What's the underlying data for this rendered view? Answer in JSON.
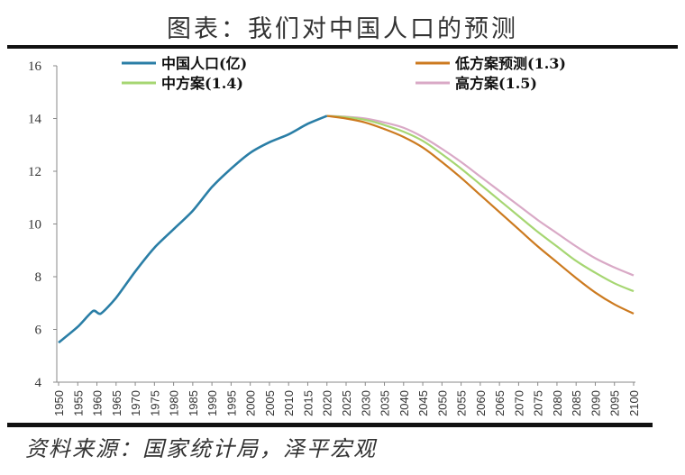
{
  "title": "图表：我们对中国人口的预测",
  "source": "资料来源：国家统计局，泽平宏观",
  "colors": {
    "historical": "#2a7ea6",
    "low": "#cc7a1f",
    "mid": "#a6d672",
    "high": "#d9a9c6",
    "axis": "#888888",
    "rule": "#111111"
  },
  "legend": {
    "historical": "中国人口(亿)",
    "low": "低方案预测(1.3)",
    "mid": "中方案(1.4)",
    "high": "高方案(1.5)"
  },
  "chart_data": {
    "type": "line",
    "title": "图表：我们对中国人口的预测",
    "xlabel": "",
    "ylabel": "",
    "ylim": [
      4,
      16
    ],
    "yticks": [
      4,
      6,
      8,
      10,
      12,
      14,
      16
    ],
    "xlim": [
      1950,
      2100
    ],
    "xticks": [
      1950,
      1955,
      1960,
      1965,
      1970,
      1975,
      1980,
      1985,
      1990,
      1995,
      2000,
      2005,
      2010,
      2015,
      2020,
      2025,
      2030,
      2035,
      2040,
      2045,
      2050,
      2055,
      2060,
      2065,
      2070,
      2075,
      2080,
      2085,
      2090,
      2095,
      2100
    ],
    "grid": false,
    "legend_position": "top",
    "series": [
      {
        "name": "中国人口(亿)",
        "key": "historical",
        "x": [
          1950,
          1955,
          1959,
          1961,
          1965,
          1970,
          1975,
          1980,
          1985,
          1990,
          1995,
          2000,
          2005,
          2010,
          2015,
          2020
        ],
        "values": [
          5.5,
          6.1,
          6.7,
          6.6,
          7.2,
          8.2,
          9.1,
          9.8,
          10.5,
          11.4,
          12.1,
          12.7,
          13.1,
          13.4,
          13.8,
          14.1
        ]
      },
      {
        "name": "低方案预测(1.3)",
        "key": "low",
        "x": [
          2020,
          2025,
          2030,
          2035,
          2040,
          2045,
          2050,
          2055,
          2060,
          2065,
          2070,
          2075,
          2080,
          2085,
          2090,
          2095,
          2100
        ],
        "values": [
          14.1,
          14.0,
          13.85,
          13.6,
          13.3,
          12.9,
          12.35,
          11.75,
          11.1,
          10.45,
          9.8,
          9.15,
          8.55,
          7.95,
          7.4,
          6.95,
          6.6
        ]
      },
      {
        "name": "中方案(1.4)",
        "key": "mid",
        "x": [
          2020,
          2025,
          2030,
          2035,
          2040,
          2045,
          2050,
          2055,
          2060,
          2065,
          2070,
          2075,
          2080,
          2085,
          2090,
          2095,
          2100
        ],
        "values": [
          14.1,
          14.05,
          13.95,
          13.75,
          13.5,
          13.15,
          12.65,
          12.1,
          11.5,
          10.9,
          10.3,
          9.7,
          9.15,
          8.6,
          8.15,
          7.75,
          7.45
        ]
      },
      {
        "name": "高方案(1.5)",
        "key": "high",
        "x": [
          2020,
          2025,
          2030,
          2035,
          2040,
          2045,
          2050,
          2055,
          2060,
          2065,
          2070,
          2075,
          2080,
          2085,
          2090,
          2095,
          2100
        ],
        "values": [
          14.1,
          14.07,
          14.0,
          13.85,
          13.65,
          13.3,
          12.85,
          12.35,
          11.8,
          11.25,
          10.7,
          10.15,
          9.65,
          9.15,
          8.7,
          8.35,
          8.05
        ]
      }
    ]
  }
}
